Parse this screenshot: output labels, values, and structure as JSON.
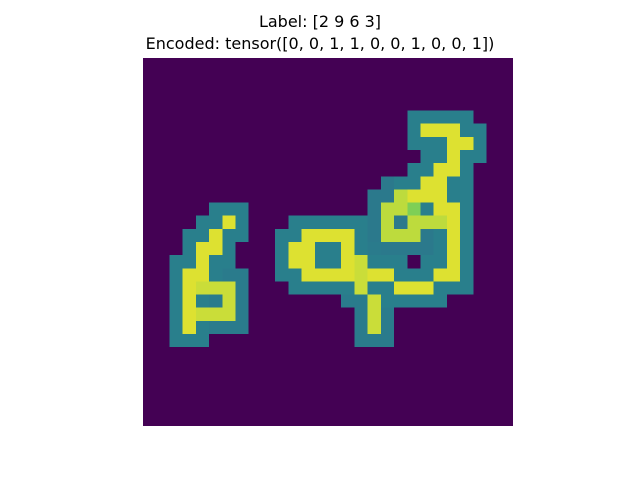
{
  "figure": {
    "title_line_1": "Label: [2 9 6 3]",
    "title_line_2": "Encoded: tensor([0, 0, 1, 1, 0, 0, 1, 0, 0, 1])"
  },
  "image": {
    "description_icon": "mnist-multi-digit-image",
    "colormap": "viridis",
    "background_color": "#440154",
    "grid_size": [
      28,
      28
    ]
  }
}
